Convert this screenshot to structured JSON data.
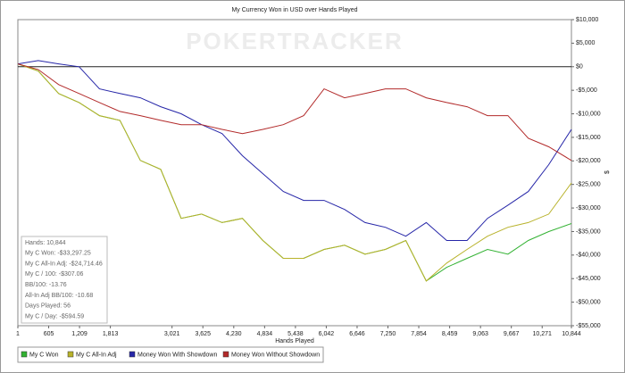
{
  "chart_data": {
    "type": "line",
    "title": "My Currency Won in USD over Hands Played",
    "watermark": "POKERTRACKER",
    "xlabel": "Hands Played",
    "ylabel": "$",
    "x": [
      1,
      400,
      800,
      1200,
      1600,
      2000,
      2400,
      2800,
      3200,
      3600,
      4000,
      4400,
      4800,
      5200,
      5600,
      6000,
      6400,
      6800,
      7200,
      7600,
      8000,
      8400,
      8800,
      9200,
      9600,
      10000,
      10400,
      10844
    ],
    "series": [
      {
        "name": "My C Won",
        "color": "#33b233",
        "values": [
          600,
          -900,
          -5700,
          -7600,
          -10400,
          -11400,
          -19900,
          -21800,
          -32200,
          -31300,
          -33100,
          -32200,
          -36900,
          -40700,
          -40700,
          -38800,
          -37900,
          -39800,
          -38800,
          -36900,
          -45500,
          -42600,
          -40700,
          -38800,
          -39800,
          -36900,
          -35000,
          -33300
        ]
      },
      {
        "name": "My C All-In Adj",
        "color": "#b8b22a",
        "values": [
          600,
          -900,
          -5700,
          -7600,
          -10400,
          -11400,
          -19900,
          -21800,
          -32200,
          -31300,
          -33100,
          -32200,
          -36900,
          -40700,
          -40700,
          -38800,
          -37900,
          -39800,
          -38800,
          -36900,
          -45500,
          -41700,
          -38800,
          -36000,
          -34100,
          -33100,
          -31300,
          -24700
        ]
      },
      {
        "name": "Money Won With Showdown",
        "color": "#2626a8",
        "values": [
          600,
          1300,
          600,
          0,
          -4700,
          -5700,
          -6600,
          -8500,
          -10000,
          -12300,
          -14200,
          -18900,
          -22700,
          -26500,
          -28400,
          -28400,
          -30300,
          -33100,
          -34100,
          -36000,
          -33100,
          -36900,
          -36900,
          -32200,
          -29400,
          -26500,
          -20800,
          -13300
        ]
      },
      {
        "name": "Money Won Without Showdown",
        "color": "#b22a2a",
        "values": [
          600,
          -600,
          -3800,
          -5700,
          -7600,
          -9500,
          -10400,
          -11400,
          -12300,
          -12300,
          -13300,
          -14200,
          -13300,
          -12300,
          -10400,
          -4700,
          -6600,
          -5700,
          -4700,
          -4700,
          -6600,
          -7600,
          -8500,
          -10400,
          -10400,
          -15200,
          -17000,
          -19900
        ]
      }
    ],
    "xlim": [
      1,
      10844
    ],
    "xticks": [
      1,
      605,
      {
        "value": 1209,
        "label": "1,209"
      },
      {
        "value": 1813,
        "label": "1,813"
      },
      {
        "value": 3021,
        "label": "3,021"
      },
      {
        "value": 3625,
        "label": "3,625"
      },
      {
        "value": 4230,
        "label": "4,230"
      },
      {
        "value": 4834,
        "label": "4,834"
      },
      {
        "value": 5438,
        "label": "5,438"
      },
      {
        "value": 6042,
        "label": "6,042"
      },
      {
        "value": 6646,
        "label": "6,646"
      },
      {
        "value": 7250,
        "label": "7,250"
      },
      {
        "value": 7854,
        "label": "7,854"
      },
      {
        "value": 8459,
        "label": "8,459"
      },
      {
        "value": 9063,
        "label": "9,063"
      },
      {
        "value": 9667,
        "label": "9,667"
      },
      {
        "value": 10271,
        "label": "10,271"
      },
      {
        "value": 10844,
        "label": "10,844"
      }
    ],
    "ylim": [
      -55000,
      10000
    ],
    "yticks": [
      {
        "value": 10000,
        "label": "$10,000"
      },
      {
        "value": 5000,
        "label": "$5,000"
      },
      {
        "value": 0,
        "label": "$0"
      },
      {
        "value": -5000,
        "label": "-$5,000"
      },
      {
        "value": -10000,
        "label": "-$10,000"
      },
      {
        "value": -15000,
        "label": "-$15,000"
      },
      {
        "value": -20000,
        "label": "-$20,000"
      },
      {
        "value": -25000,
        "label": "-$25,000"
      },
      {
        "value": -30000,
        "label": "-$30,000"
      },
      {
        "value": -35000,
        "label": "-$35,000"
      },
      {
        "value": -40000,
        "label": "-$40,000"
      },
      {
        "value": -45000,
        "label": "-$45,000"
      },
      {
        "value": -50000,
        "label": "-$50,000"
      },
      {
        "value": -55000,
        "label": "-$55,000"
      }
    ],
    "grid": false,
    "stats": [
      "Hands: 10,844",
      "My C Won: -$33,297.25",
      "My C All-In Adj: -$24,714.46",
      "My C / 100: -$307.06",
      "BB/100: -13.76",
      "All-In Adj BB/100: -10.68",
      "Days Played: 56",
      "My C / Day: -$594.59"
    ]
  }
}
